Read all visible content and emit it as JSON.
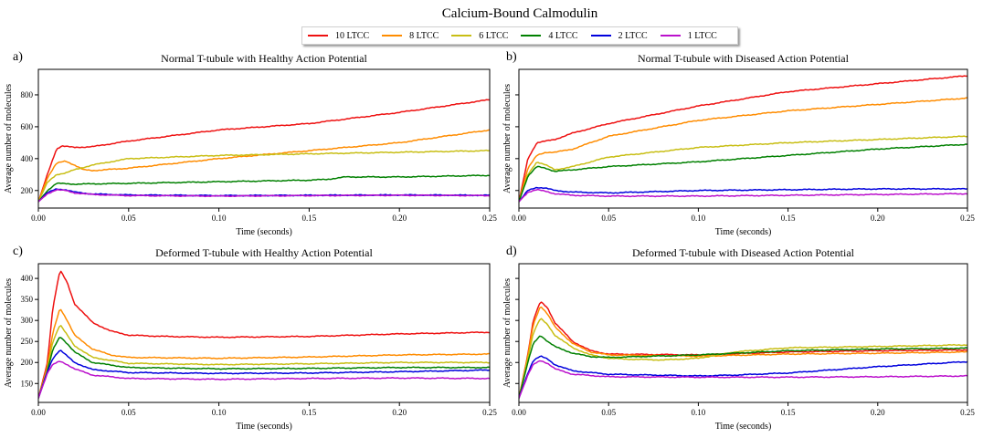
{
  "figure": {
    "title": "Calcium-Bound Calmodulin",
    "legend": [
      {
        "label": "10 LTCC",
        "color": "#ee1111"
      },
      {
        "label": "8 LTCC",
        "color": "#ff8c00"
      },
      {
        "label": "6 LTCC",
        "color": "#c8be14"
      },
      {
        "label": "4 LTCC",
        "color": "#008000"
      },
      {
        "label": "2 LTCC",
        "color": "#0000dd"
      },
      {
        "label": "1 LTCC",
        "color": "#bb11cc"
      }
    ]
  },
  "chart_data": [
    {
      "type": "line",
      "panel_label": "a)",
      "title": "Normal T-tubule with Healthy Action Potential",
      "xlabel": "Time (seconds)",
      "ylabel": "Average number of molecules",
      "xlim": [
        0,
        0.25
      ],
      "ylim": [
        90,
        960
      ],
      "xticks": [
        "0.00",
        "0.05",
        "0.10",
        "0.15",
        "0.20",
        "0.25"
      ],
      "yticks": [
        200,
        400,
        600,
        800
      ],
      "ytick_labels": [
        "200",
        "400",
        "600",
        "800"
      ],
      "series": [
        {
          "name": "10 LTCC",
          "color": "#ee1111",
          "x": [
            0,
            0.005,
            0.01,
            0.013,
            0.02,
            0.03,
            0.05,
            0.1,
            0.15,
            0.2,
            0.25
          ],
          "y": [
            130,
            300,
            460,
            480,
            470,
            475,
            510,
            580,
            620,
            690,
            770
          ]
        },
        {
          "name": "8 LTCC",
          "color": "#ff8c00",
          "x": [
            0,
            0.005,
            0.01,
            0.015,
            0.02,
            0.025,
            0.03,
            0.05,
            0.1,
            0.15,
            0.2,
            0.25
          ],
          "y": [
            130,
            280,
            370,
            385,
            360,
            330,
            325,
            340,
            400,
            450,
            500,
            580
          ]
        },
        {
          "name": "6 LTCC",
          "color": "#c8be14",
          "x": [
            0,
            0.005,
            0.01,
            0.015,
            0.02,
            0.03,
            0.05,
            0.1,
            0.15,
            0.2,
            0.25
          ],
          "y": [
            130,
            250,
            300,
            310,
            330,
            360,
            400,
            420,
            430,
            440,
            450
          ]
        },
        {
          "name": "4 LTCC",
          "color": "#008000",
          "x": [
            0,
            0.005,
            0.01,
            0.02,
            0.05,
            0.1,
            0.15,
            0.16,
            0.17,
            0.2,
            0.25
          ],
          "y": [
            130,
            200,
            245,
            240,
            245,
            255,
            265,
            270,
            285,
            285,
            295
          ]
        },
        {
          "name": "2 LTCC",
          "color": "#0000dd",
          "x": [
            0,
            0.005,
            0.01,
            0.015,
            0.02,
            0.03,
            0.05,
            0.1,
            0.15,
            0.2,
            0.25
          ],
          "y": [
            130,
            185,
            210,
            205,
            190,
            178,
            172,
            168,
            170,
            172,
            170
          ]
        },
        {
          "name": "1 LTCC",
          "color": "#bb11cc",
          "x": [
            0,
            0.005,
            0.01,
            0.015,
            0.02,
            0.03,
            0.05,
            0.1,
            0.15,
            0.2,
            0.25
          ],
          "y": [
            130,
            180,
            205,
            200,
            185,
            175,
            168,
            165,
            168,
            170,
            168
          ]
        }
      ]
    },
    {
      "type": "line",
      "panel_label": "b)",
      "title": "Normal T-tubule with Diseased Action Potential",
      "xlabel": "Time (seconds)",
      "ylabel": "Average number of molecules",
      "xlim": [
        0,
        0.25
      ],
      "ylim": [
        90,
        960
      ],
      "xticks": [
        "0.00",
        "0.05",
        "0.10",
        "0.15",
        "0.20",
        "0.25"
      ],
      "yticks": [
        200,
        400,
        600,
        800
      ],
      "ytick_labels": [
        "",
        "",
        "",
        ""
      ],
      "series": [
        {
          "name": "10 LTCC",
          "color": "#ee1111",
          "x": [
            0,
            0.005,
            0.01,
            0.015,
            0.02,
            0.03,
            0.05,
            0.1,
            0.15,
            0.2,
            0.25
          ],
          "y": [
            130,
            400,
            500,
            510,
            520,
            560,
            620,
            730,
            820,
            870,
            920
          ]
        },
        {
          "name": "8 LTCC",
          "color": "#ff8c00",
          "x": [
            0,
            0.005,
            0.01,
            0.015,
            0.02,
            0.03,
            0.05,
            0.1,
            0.15,
            0.2,
            0.25
          ],
          "y": [
            130,
            340,
            420,
            440,
            440,
            460,
            540,
            640,
            700,
            740,
            780
          ]
        },
        {
          "name": "6 LTCC",
          "color": "#c8be14",
          "x": [
            0,
            0.005,
            0.01,
            0.015,
            0.02,
            0.03,
            0.05,
            0.1,
            0.15,
            0.2,
            0.25
          ],
          "y": [
            130,
            300,
            380,
            360,
            330,
            350,
            410,
            470,
            500,
            520,
            540
          ]
        },
        {
          "name": "4 LTCC",
          "color": "#008000",
          "x": [
            0,
            0.005,
            0.01,
            0.015,
            0.02,
            0.03,
            0.05,
            0.1,
            0.15,
            0.2,
            0.25
          ],
          "y": [
            130,
            290,
            350,
            340,
            320,
            330,
            350,
            380,
            420,
            460,
            490
          ]
        },
        {
          "name": "2 LTCC",
          "color": "#0000dd",
          "x": [
            0,
            0.005,
            0.01,
            0.015,
            0.02,
            0.03,
            0.05,
            0.1,
            0.15,
            0.2,
            0.25
          ],
          "y": [
            130,
            200,
            220,
            215,
            200,
            190,
            185,
            200,
            205,
            210,
            210
          ]
        },
        {
          "name": "1 LTCC",
          "color": "#bb11cc",
          "x": [
            0,
            0.005,
            0.01,
            0.015,
            0.02,
            0.03,
            0.05,
            0.1,
            0.15,
            0.2,
            0.25
          ],
          "y": [
            130,
            190,
            205,
            195,
            180,
            170,
            165,
            165,
            170,
            175,
            180
          ]
        }
      ]
    },
    {
      "type": "line",
      "panel_label": "c)",
      "title": "Deformed T-tubule with Healthy Action Potential",
      "xlabel": "Time (seconds)",
      "ylabel": "Average number of molecules",
      "xlim": [
        0,
        0.25
      ],
      "ylim": [
        105,
        435
      ],
      "xticks": [
        "0.00",
        "0.05",
        "0.10",
        "0.15",
        "0.20",
        "0.25"
      ],
      "yticks": [
        150,
        200,
        250,
        300,
        350,
        400
      ],
      "ytick_labels": [
        "150",
        "200",
        "250",
        "300",
        "350",
        "400"
      ],
      "series": [
        {
          "name": "10 LTCC",
          "color": "#ee1111",
          "x": [
            0,
            0.005,
            0.008,
            0.012,
            0.016,
            0.02,
            0.03,
            0.04,
            0.05,
            0.07,
            0.1,
            0.15,
            0.2,
            0.25
          ],
          "y": [
            115,
            200,
            330,
            420,
            390,
            340,
            295,
            275,
            265,
            262,
            260,
            262,
            268,
            272
          ]
        },
        {
          "name": "8 LTCC",
          "color": "#ff8c00",
          "x": [
            0,
            0.005,
            0.008,
            0.012,
            0.016,
            0.02,
            0.03,
            0.04,
            0.05,
            0.1,
            0.15,
            0.2,
            0.25
          ],
          "y": [
            115,
            190,
            270,
            330,
            300,
            265,
            232,
            218,
            212,
            210,
            213,
            218,
            220
          ]
        },
        {
          "name": "6 LTCC",
          "color": "#c8be14",
          "x": [
            0,
            0.005,
            0.008,
            0.012,
            0.016,
            0.02,
            0.03,
            0.05,
            0.1,
            0.15,
            0.2,
            0.25
          ],
          "y": [
            115,
            185,
            250,
            290,
            265,
            240,
            212,
            198,
            195,
            197,
            200,
            200
          ]
        },
        {
          "name": "4 LTCC",
          "color": "#008000",
          "x": [
            0,
            0.005,
            0.008,
            0.012,
            0.016,
            0.02,
            0.03,
            0.05,
            0.1,
            0.15,
            0.2,
            0.25
          ],
          "y": [
            115,
            180,
            230,
            262,
            245,
            225,
            200,
            188,
            185,
            186,
            188,
            188
          ]
        },
        {
          "name": "2 LTCC",
          "color": "#0000dd",
          "x": [
            0,
            0.005,
            0.008,
            0.012,
            0.016,
            0.02,
            0.03,
            0.05,
            0.1,
            0.15,
            0.2,
            0.25
          ],
          "y": [
            115,
            178,
            210,
            230,
            215,
            200,
            183,
            176,
            174,
            175,
            178,
            182
          ]
        },
        {
          "name": "1 LTCC",
          "color": "#bb11cc",
          "x": [
            0,
            0.005,
            0.008,
            0.012,
            0.016,
            0.02,
            0.03,
            0.05,
            0.1,
            0.15,
            0.2,
            0.25
          ],
          "y": [
            115,
            175,
            195,
            203,
            195,
            185,
            170,
            162,
            160,
            162,
            163,
            162
          ]
        }
      ]
    },
    {
      "type": "line",
      "panel_label": "d)",
      "title": "Deformed T-tubule with Diseased Action Potential",
      "xlabel": "Time (seconds)",
      "ylabel": "Average number of molecules",
      "xlim": [
        0,
        0.25
      ],
      "ylim": [
        105,
        435
      ],
      "xticks": [
        "0.00",
        "0.05",
        "0.10",
        "0.15",
        "0.20",
        "0.25"
      ],
      "yticks": [
        150,
        200,
        250,
        300,
        350,
        400
      ],
      "ytick_labels": [
        "",
        "",
        "",
        "",
        "",
        ""
      ],
      "series": [
        {
          "name": "10 LTCC",
          "color": "#ee1111",
          "x": [
            0,
            0.005,
            0.008,
            0.012,
            0.016,
            0.02,
            0.03,
            0.04,
            0.05,
            0.1,
            0.15,
            0.2,
            0.25
          ],
          "y": [
            115,
            220,
            300,
            345,
            330,
            295,
            250,
            228,
            220,
            218,
            225,
            228,
            230
          ]
        },
        {
          "name": "8 LTCC",
          "color": "#ff8c00",
          "x": [
            0,
            0.005,
            0.008,
            0.012,
            0.016,
            0.02,
            0.03,
            0.04,
            0.05,
            0.1,
            0.15,
            0.2,
            0.25
          ],
          "y": [
            115,
            215,
            290,
            335,
            315,
            285,
            245,
            225,
            218,
            215,
            220,
            222,
            225
          ]
        },
        {
          "name": "6 LTCC",
          "color": "#c8be14",
          "x": [
            0,
            0.005,
            0.008,
            0.012,
            0.016,
            0.02,
            0.03,
            0.04,
            0.05,
            0.06,
            0.08,
            0.1,
            0.12,
            0.15,
            0.2,
            0.25
          ],
          "y": [
            115,
            210,
            270,
            305,
            290,
            265,
            235,
            218,
            210,
            208,
            206,
            210,
            225,
            235,
            238,
            242
          ]
        },
        {
          "name": "4 LTCC",
          "color": "#008000",
          "x": [
            0,
            0.005,
            0.008,
            0.012,
            0.016,
            0.02,
            0.03,
            0.04,
            0.05,
            0.1,
            0.15,
            0.2,
            0.25
          ],
          "y": [
            115,
            200,
            245,
            265,
            250,
            238,
            222,
            214,
            212,
            218,
            228,
            232,
            234
          ]
        },
        {
          "name": "2 LTCC",
          "color": "#0000dd",
          "x": [
            0,
            0.005,
            0.008,
            0.012,
            0.016,
            0.02,
            0.03,
            0.05,
            0.1,
            0.12,
            0.15,
            0.2,
            0.25
          ],
          "y": [
            115,
            175,
            205,
            215,
            208,
            195,
            180,
            172,
            168,
            170,
            175,
            190,
            202
          ]
        },
        {
          "name": "1 LTCC",
          "color": "#bb11cc",
          "x": [
            0,
            0.005,
            0.008,
            0.012,
            0.016,
            0.02,
            0.03,
            0.05,
            0.1,
            0.15,
            0.2,
            0.25
          ],
          "y": [
            115,
            170,
            195,
            205,
            198,
            185,
            172,
            166,
            165,
            165,
            166,
            168
          ]
        }
      ]
    }
  ]
}
